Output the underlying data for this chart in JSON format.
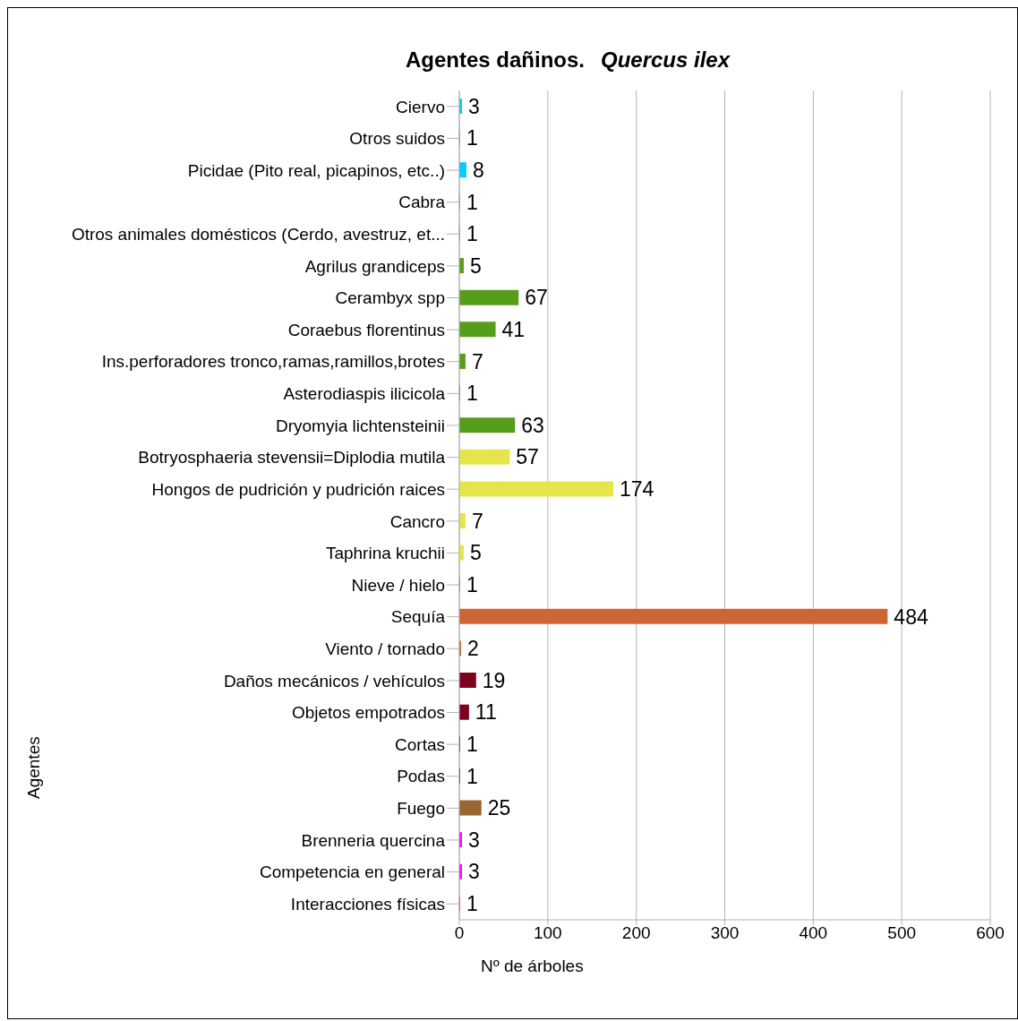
{
  "chart_data": {
    "type": "bar",
    "orientation": "horizontal",
    "title": "Agentes dañinos. Quercus ilex",
    "xlabel": "Nº de árboles",
    "ylabel": "Agentes",
    "categories": [
      "Ciervo",
      "Otros suidos",
      "Picidae (Pito real, picapinos, etc..)",
      "Cabra",
      "Otros animales domésticos (Cerdo, avestruz, et...",
      "Agrilus grandiceps",
      "Cerambyx spp",
      "Coraebus florentinus",
      "Ins.perforadores tronco,ramas,ramillos,brotes",
      "Asterodiaspis ilicicola",
      "Dryomyia lichtensteinii",
      "Botryosphaeria stevensii=Diplodia mutila",
      "Hongos de pudrición y pudrición raices",
      "Cancro",
      "Taphrina kruchii",
      "Nieve / hielo",
      "Sequía",
      "Viento / tornado",
      "Daños mecánicos / vehículos",
      "Objetos empotrados",
      "Cortas",
      "Podas",
      "Fuego",
      "Brenneria quercina",
      "Competencia en general",
      "Interacciones físicas"
    ],
    "values": [
      3,
      1,
      8,
      1,
      1,
      5,
      67,
      41,
      7,
      1,
      63,
      57,
      174,
      7,
      5,
      1,
      484,
      2,
      19,
      11,
      1,
      1,
      25,
      3,
      3,
      1
    ],
    "colors": [
      "#00ccff",
      "#00ccff",
      "#00ccff",
      "#00ccff",
      "#00ccff",
      "#579d1c",
      "#579d1c",
      "#579d1c",
      "#579d1c",
      "#579d1c",
      "#579d1c",
      "#e6e64c",
      "#e6e64c",
      "#e6e64c",
      "#e6e64c",
      "#cc6633",
      "#cc6633",
      "#cc6633",
      "#7e0021",
      "#7e0021",
      "#7e0021",
      "#7e0021",
      "#996633",
      "#ff00ff",
      "#ff00ff",
      "#ff00ff"
    ],
    "xlim": [
      0,
      600
    ],
    "xticks": [
      0,
      100,
      200,
      300,
      400,
      500,
      600
    ],
    "grid": "x",
    "data_labels": true
  }
}
